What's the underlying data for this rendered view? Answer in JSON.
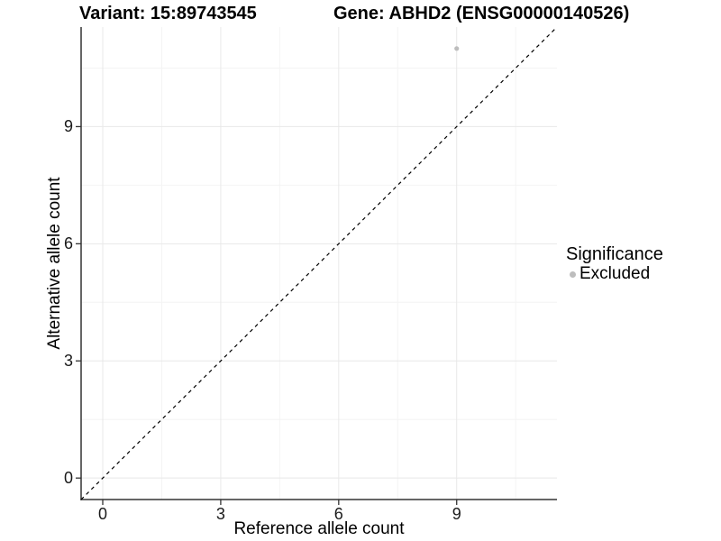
{
  "titles": {
    "variant": "Variant: 15:89743545",
    "gene": "Gene: ABHD2 (ENSG00000140526)"
  },
  "axes": {
    "x_label": "Reference allele count",
    "y_label": "Alternative allele count"
  },
  "legend": {
    "title": "Significance",
    "items": [
      {
        "label": "Excluded",
        "color": "#bdbdbd"
      }
    ]
  },
  "chart_data": {
    "type": "scatter",
    "title": "Variant: 15:89743545 | Gene: ABHD2 (ENSG00000140526)",
    "xlabel": "Reference allele count",
    "ylabel": "Alternative allele count",
    "x_ticks": [
      "0",
      "3",
      "6",
      "9"
    ],
    "y_ticks": [
      "0",
      "3",
      "6",
      "9"
    ],
    "x_tick_values": [
      0,
      3,
      6,
      9
    ],
    "y_tick_values": [
      0,
      3,
      6,
      9
    ],
    "x_minor_values": [
      1.5,
      4.5,
      7.5,
      10.5
    ],
    "y_minor_values": [
      1.5,
      4.5,
      7.5,
      10.5
    ],
    "xlim": [
      -0.55,
      11.55
    ],
    "ylim": [
      -0.55,
      11.55
    ],
    "grid": "major and minor, light gray on white",
    "legend_position": "right",
    "series": [
      {
        "name": "Excluded",
        "color": "#bdbdbd",
        "points": [
          {
            "x": 9,
            "y": 11
          }
        ]
      }
    ],
    "reference_line": {
      "kind": "identity y=x",
      "style": "dashed",
      "color": "#000000"
    },
    "colors": {
      "background": "#ffffff",
      "major_grid": "#e8e8e8",
      "minor_grid": "#f4f4f4",
      "axis_line": "#333333",
      "tick_mark": "#333333",
      "point": "#bdbdbd"
    }
  }
}
